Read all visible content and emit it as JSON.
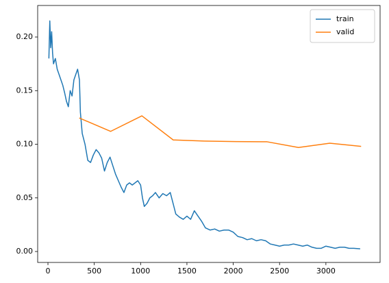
{
  "chart_data": {
    "type": "line",
    "xlim": [
      -111,
      3585
    ],
    "ylim": [
      -0.0102,
      0.2294
    ],
    "xticks": [
      0,
      500,
      1000,
      1500,
      2000,
      2500,
      3000
    ],
    "yticks": [
      {
        "value": 0,
        "label": "0.00"
      },
      {
        "value": 0.05,
        "label": "0.05"
      },
      {
        "value": 0.1,
        "label": "0.10"
      },
      {
        "value": 0.15,
        "label": "0.15"
      },
      {
        "value": 0.2,
        "label": "0.20"
      }
    ],
    "legend": "upper right",
    "grid": false,
    "series": [
      {
        "name": "train",
        "color": "#1f77b4",
        "x": [
          10,
          20,
          30,
          40,
          50,
          60,
          80,
          100,
          120,
          140,
          160,
          180,
          200,
          220,
          240,
          260,
          280,
          300,
          320,
          340,
          350,
          370,
          400,
          430,
          460,
          490,
          520,
          550,
          580,
          610,
          640,
          670,
          700,
          730,
          760,
          790,
          820,
          850,
          880,
          910,
          940,
          970,
          1000,
          1020,
          1040,
          1070,
          1100,
          1130,
          1160,
          1200,
          1240,
          1280,
          1320,
          1350,
          1380,
          1420,
          1460,
          1500,
          1540,
          1580,
          1620,
          1660,
          1700,
          1750,
          1800,
          1850,
          1900,
          1950,
          2000,
          2050,
          2100,
          2150,
          2200,
          2250,
          2300,
          2350,
          2400,
          2450,
          2500,
          2550,
          2600,
          2650,
          2700,
          2750,
          2800,
          2850,
          2900,
          2950,
          3000,
          3050,
          3100,
          3150,
          3200,
          3250,
          3300,
          3370
        ],
        "values": [
          0.18,
          0.215,
          0.19,
          0.205,
          0.185,
          0.175,
          0.18,
          0.17,
          0.165,
          0.16,
          0.155,
          0.148,
          0.14,
          0.135,
          0.15,
          0.145,
          0.16,
          0.165,
          0.17,
          0.16,
          0.13,
          0.11,
          0.1,
          0.085,
          0.083,
          0.09,
          0.095,
          0.092,
          0.087,
          0.075,
          0.083,
          0.088,
          0.08,
          0.072,
          0.066,
          0.06,
          0.055,
          0.062,
          0.064,
          0.062,
          0.064,
          0.066,
          0.062,
          0.05,
          0.042,
          0.045,
          0.05,
          0.052,
          0.055,
          0.05,
          0.054,
          0.052,
          0.055,
          0.045,
          0.035,
          0.032,
          0.03,
          0.033,
          0.03,
          0.038,
          0.033,
          0.028,
          0.022,
          0.02,
          0.021,
          0.019,
          0.02,
          0.02,
          0.018,
          0.014,
          0.013,
          0.011,
          0.012,
          0.01,
          0.011,
          0.01,
          0.007,
          0.006,
          0.005,
          0.006,
          0.006,
          0.007,
          0.006,
          0.005,
          0.006,
          0.004,
          0.003,
          0.003,
          0.005,
          0.004,
          0.003,
          0.004,
          0.004,
          0.003,
          0.003,
          0.0025
        ]
      },
      {
        "name": "valid",
        "color": "#ff7f0e",
        "x": [
          338,
          676,
          1014,
          1352,
          1690,
          2028,
          2366,
          2704,
          3042,
          3380
        ],
        "values": [
          0.1245,
          0.112,
          0.1265,
          0.104,
          0.103,
          0.1025,
          0.1023,
          0.097,
          0.101,
          0.098
        ]
      }
    ]
  }
}
